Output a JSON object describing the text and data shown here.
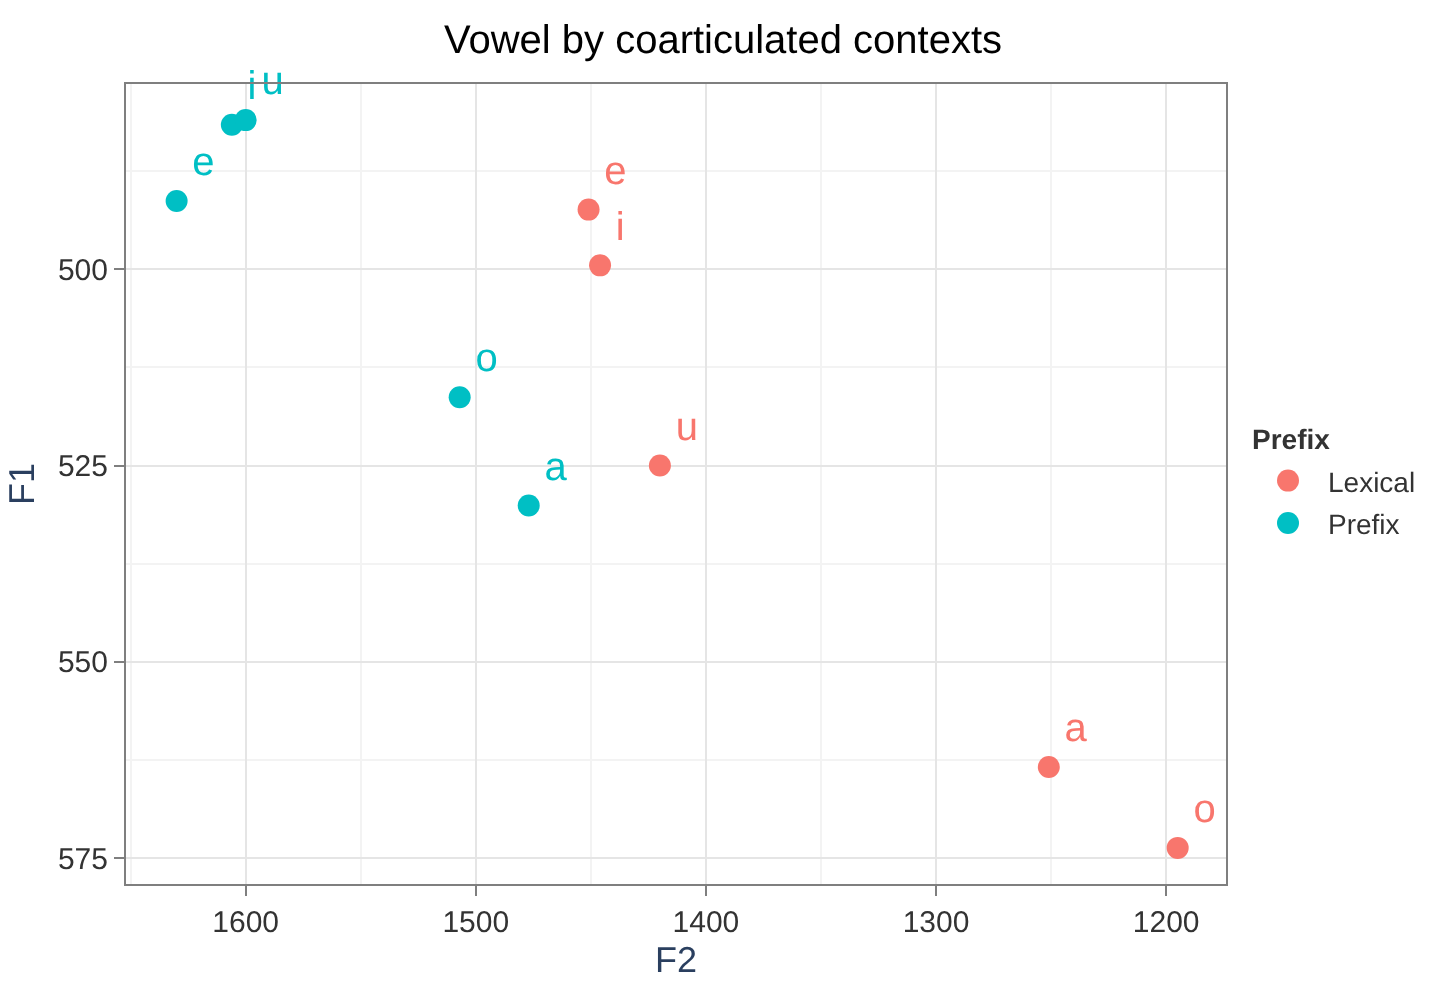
{
  "chart_data": {
    "type": "scatter",
    "title": "Vowel by coarticulated contexts",
    "xlabel": "F2",
    "ylabel": "F1",
    "legend_title": "Prefix",
    "series": [
      {
        "name": "Lexical",
        "color": "#f8766d",
        "x": [
          1451,
          1446,
          1420,
          1251,
          1195
        ],
        "values": [
          492.4,
          499.5,
          525,
          563.4,
          573.7
        ],
        "value_labels": [
          "e",
          "i",
          "u",
          "a",
          "o"
        ]
      },
      {
        "name": "Prefix",
        "color": "#00bfc4",
        "x": [
          1630,
          1606,
          1600,
          1507,
          1477
        ],
        "values": [
          491.3,
          481.6,
          481,
          516.3,
          530.1
        ],
        "value_labels": [
          "e",
          "i",
          "u",
          "o",
          "a"
        ]
      }
    ],
    "xlim": [
      1652,
      1174
    ],
    "ylim": [
      578.3,
      476.4
    ],
    "xticks": [
      1600,
      1500,
      1400,
      1300,
      1200
    ],
    "yticks": [
      500,
      525,
      550,
      575
    ],
    "grid": true,
    "legend": "right",
    "marker": "circle"
  }
}
